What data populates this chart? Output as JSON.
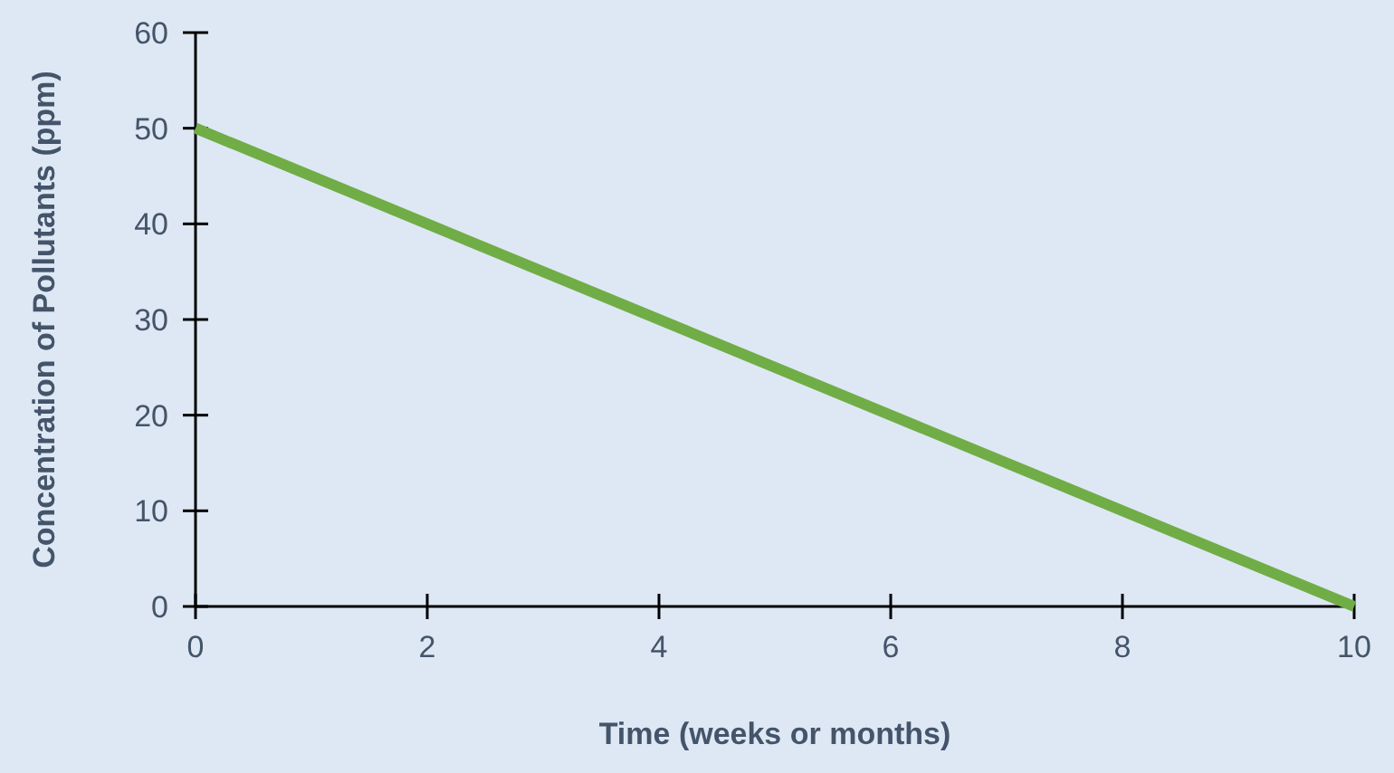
{
  "chart_data": {
    "type": "line",
    "xlabel": "Time (weeks or months)",
    "ylabel": "Concentration of Pollutants (ppm)",
    "x": [
      0,
      10
    ],
    "series": [
      {
        "color": "#70ad47",
        "values": [
          50,
          0
        ]
      }
    ],
    "xlim": [
      0,
      10
    ],
    "xticks": [
      0,
      2,
      4,
      6,
      8,
      10
    ],
    "ylim": [
      0,
      60
    ],
    "yticks": [
      0,
      10,
      20,
      30,
      40,
      50,
      60
    ],
    "grid": false,
    "marker": "none",
    "line_style": "solid"
  }
}
